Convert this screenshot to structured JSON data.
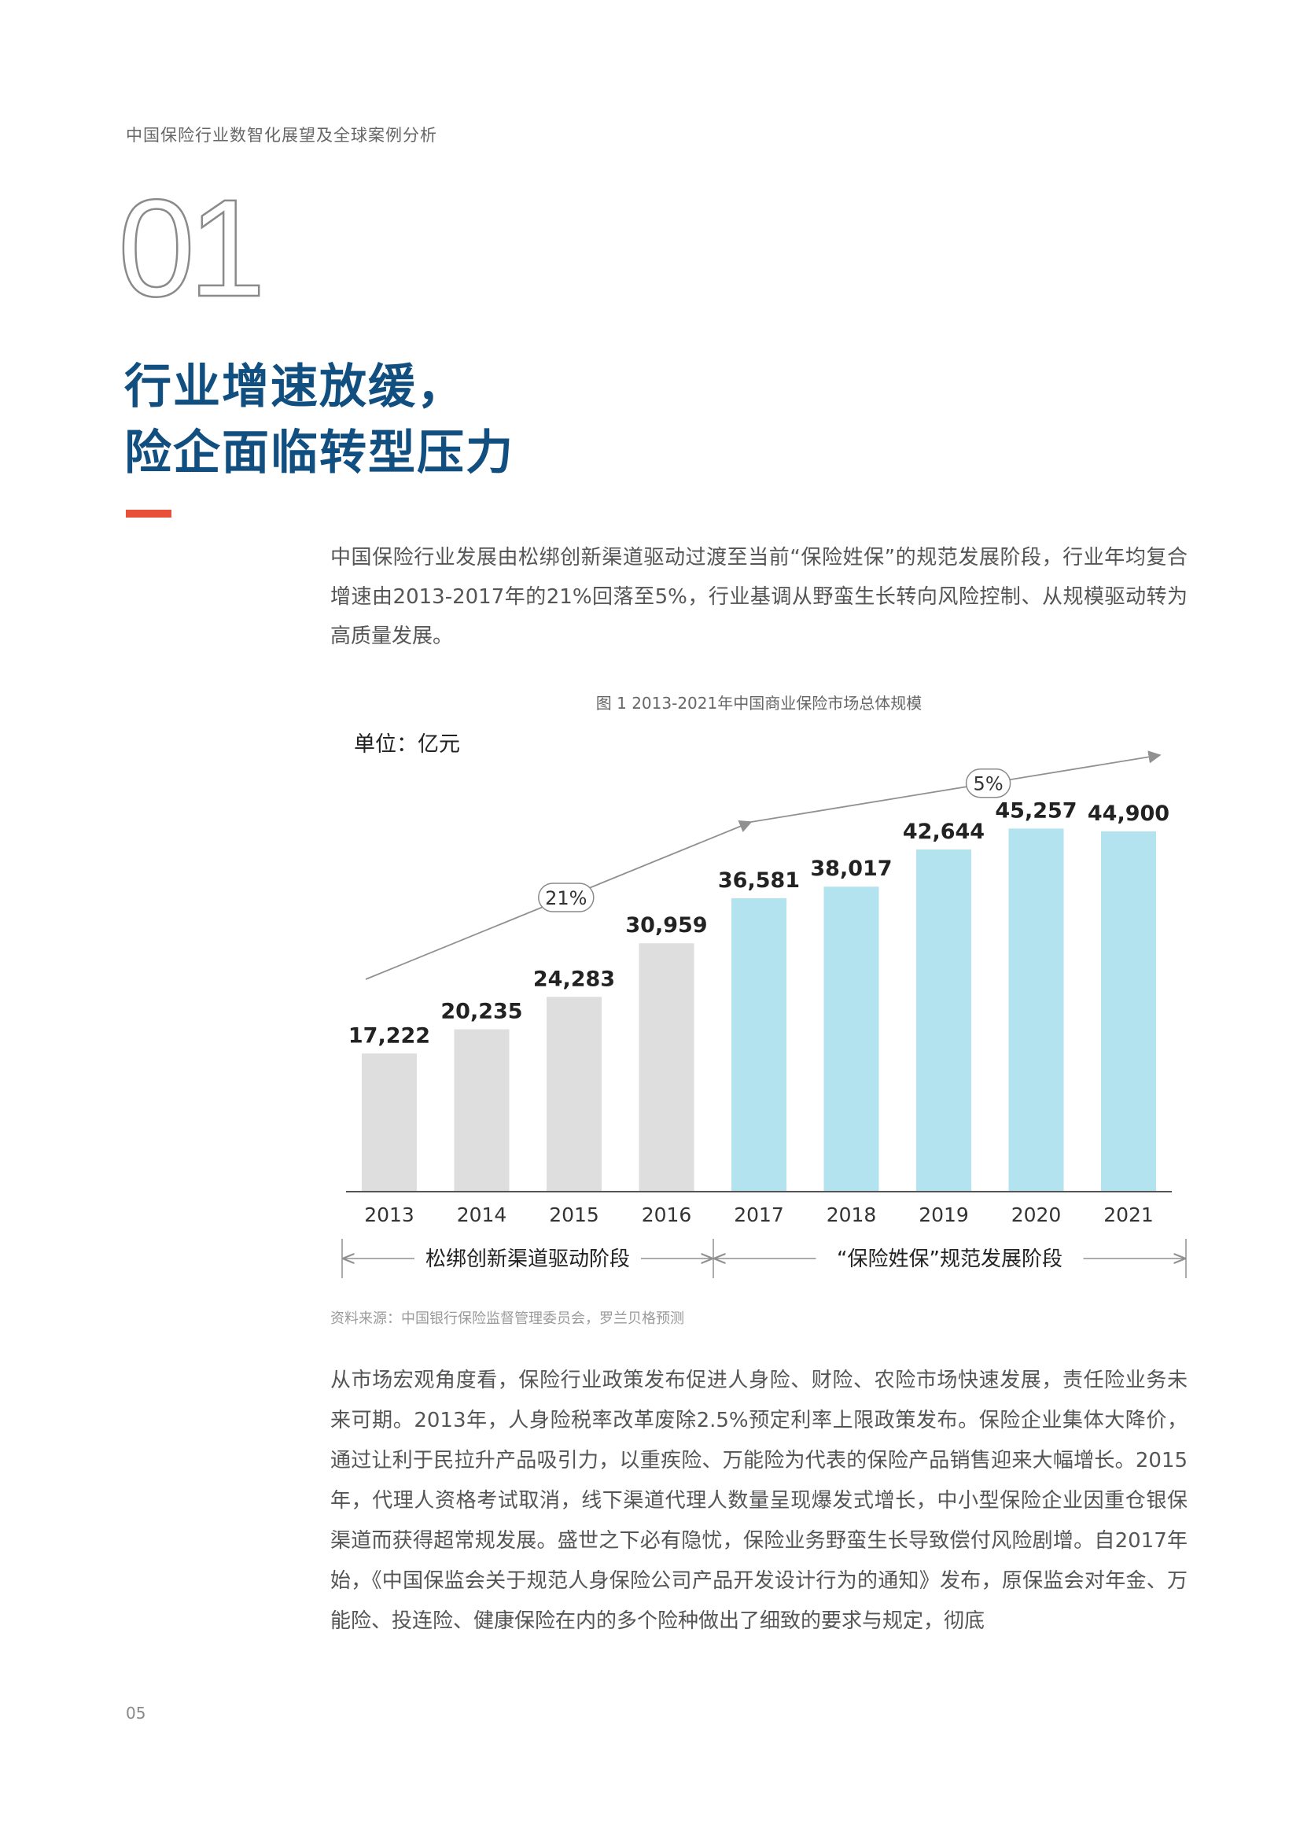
{
  "header": {
    "text": "中国保险行业数智化展望及全球案例分析"
  },
  "chapter": {
    "number": "01"
  },
  "title": {
    "line1": "行业增速放缓，",
    "line2": "险企面临转型压力"
  },
  "intro": "中国保险行业发展由松绑创新渠道驱动过渡至当前“保险姓保”的规范发展阶段，行业年均复合增速由2013-2017年的21%回落至5%，行业基调从野蛮生长转向风险控制、从规模驱动转为高质量发展。",
  "chart_data": {
    "type": "bar",
    "title": "图 1 2013-2021年中国商业保险市场总体规模",
    "unit_label": "单位：亿元",
    "categories": [
      "2013",
      "2014",
      "2015",
      "2016",
      "2017",
      "2018",
      "2019",
      "2020",
      "2021"
    ],
    "values": [
      17222,
      20235,
      24283,
      30959,
      36581,
      38017,
      42644,
      45257,
      44900
    ],
    "value_labels": [
      "17,222",
      "20,235",
      "24,283",
      "30,959",
      "36,581",
      "38,017",
      "42,644",
      "45,257",
      "44,900"
    ],
    "ylim": [
      0,
      50000
    ],
    "colors": {
      "phase1": "#dedede",
      "phase2": "#b3e3ef",
      "arrow": "#909090"
    },
    "phases": [
      {
        "label": "松绑创新渠道驱动阶段",
        "from": "2013",
        "to": "2016"
      },
      {
        "label": "“保险姓保”规范发展阶段",
        "from": "2017",
        "to": "2021"
      }
    ],
    "growth_annotations": [
      "21%",
      "5%"
    ],
    "grid": false
  },
  "source": "资料来源：中国银行保险监督管理委员会，罗兰贝格预测",
  "body": "从市场宏观角度看，保险行业政策发布促进人身险、财险、农险市场快速发展，责任险业务未来可期。2013年，人身险税率改革废除2.5%预定利率上限政策发布。保险企业集体大降价，通过让利于民拉升产品吸引力，以重疾险、万能险为代表的保险产品销售迎来大幅增长。2015年，代理人资格考试取消，线下渠道代理人数量呈现爆发式增长，中小型保险企业因重仓银保渠道而获得超常规发展。盛世之下必有隐忧，保险业务野蛮生长导致偿付风险剧增。自2017年始，《中国保监会关于规范人身保险公司产品开发设计行为的通知》发布，原保监会对年金、万能险、投连险、健康保险在内的多个险种做出了细致的要求与规定，彻底",
  "page_number": "05"
}
